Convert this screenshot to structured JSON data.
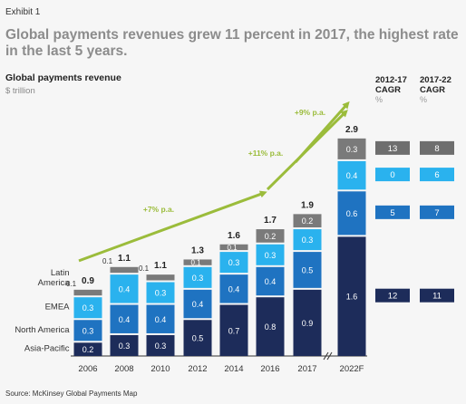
{
  "exhibit_label": "Exhibit 1",
  "title": "Global payments revenues grew 11 percent in 2017, the highest rate in the last 5 years.",
  "source": "Source: McKinsey Global Payments Map",
  "colors": {
    "Asia-Pacific": "#1d2c5a",
    "North America": "#1f73c1",
    "EMEA": "#2ab2ee",
    "Latin America": "#7a7a7a",
    "growth_arrow": "#9bbc3b",
    "cagr_box": "#6e6e6e"
  },
  "chart_data": {
    "type": "bar",
    "stacked": true,
    "title": "Global payments revenue",
    "ylabel": "$ trillion",
    "categories": [
      "2006",
      "2008",
      "2010",
      "2012",
      "2014",
      "2016",
      "2017",
      "2022F"
    ],
    "series": [
      {
        "name": "Asia-Pacific",
        "values": [
          0.2,
          0.3,
          0.3,
          0.5,
          0.7,
          0.8,
          0.9,
          1.6
        ]
      },
      {
        "name": "North America",
        "values": [
          0.3,
          0.4,
          0.4,
          0.4,
          0.4,
          0.4,
          0.5,
          0.6
        ]
      },
      {
        "name": "EMEA",
        "values": [
          0.3,
          0.4,
          0.3,
          0.3,
          0.3,
          0.3,
          0.3,
          0.4
        ]
      },
      {
        "name": "Latin America",
        "values": [
          0.1,
          0.1,
          0.1,
          0.1,
          0.1,
          0.2,
          0.2,
          0.3
        ]
      }
    ],
    "totals": [
      "0.9",
      "1.1",
      "1.1",
      "1.3",
      "1.6",
      "1.7",
      "1.9",
      "2.9"
    ],
    "axis_break_before": "2022F",
    "growth_annotations": [
      "+7% p.a.",
      "+11% p.a.",
      "+9% p.a."
    ],
    "cagr_columns": [
      {
        "header": "2012-17 CAGR",
        "unit": "%"
      },
      {
        "header": "2017-22 CAGR",
        "unit": "%"
      }
    ],
    "cagr": [
      {
        "series": "Latin America",
        "values": [
          "13",
          "8"
        ]
      },
      {
        "series": "EMEA",
        "values": [
          "0",
          "6"
        ]
      },
      {
        "series": "North America",
        "values": [
          "5",
          "7"
        ]
      },
      {
        "series": "Asia-Pacific",
        "values": [
          "12",
          "11"
        ]
      }
    ]
  }
}
